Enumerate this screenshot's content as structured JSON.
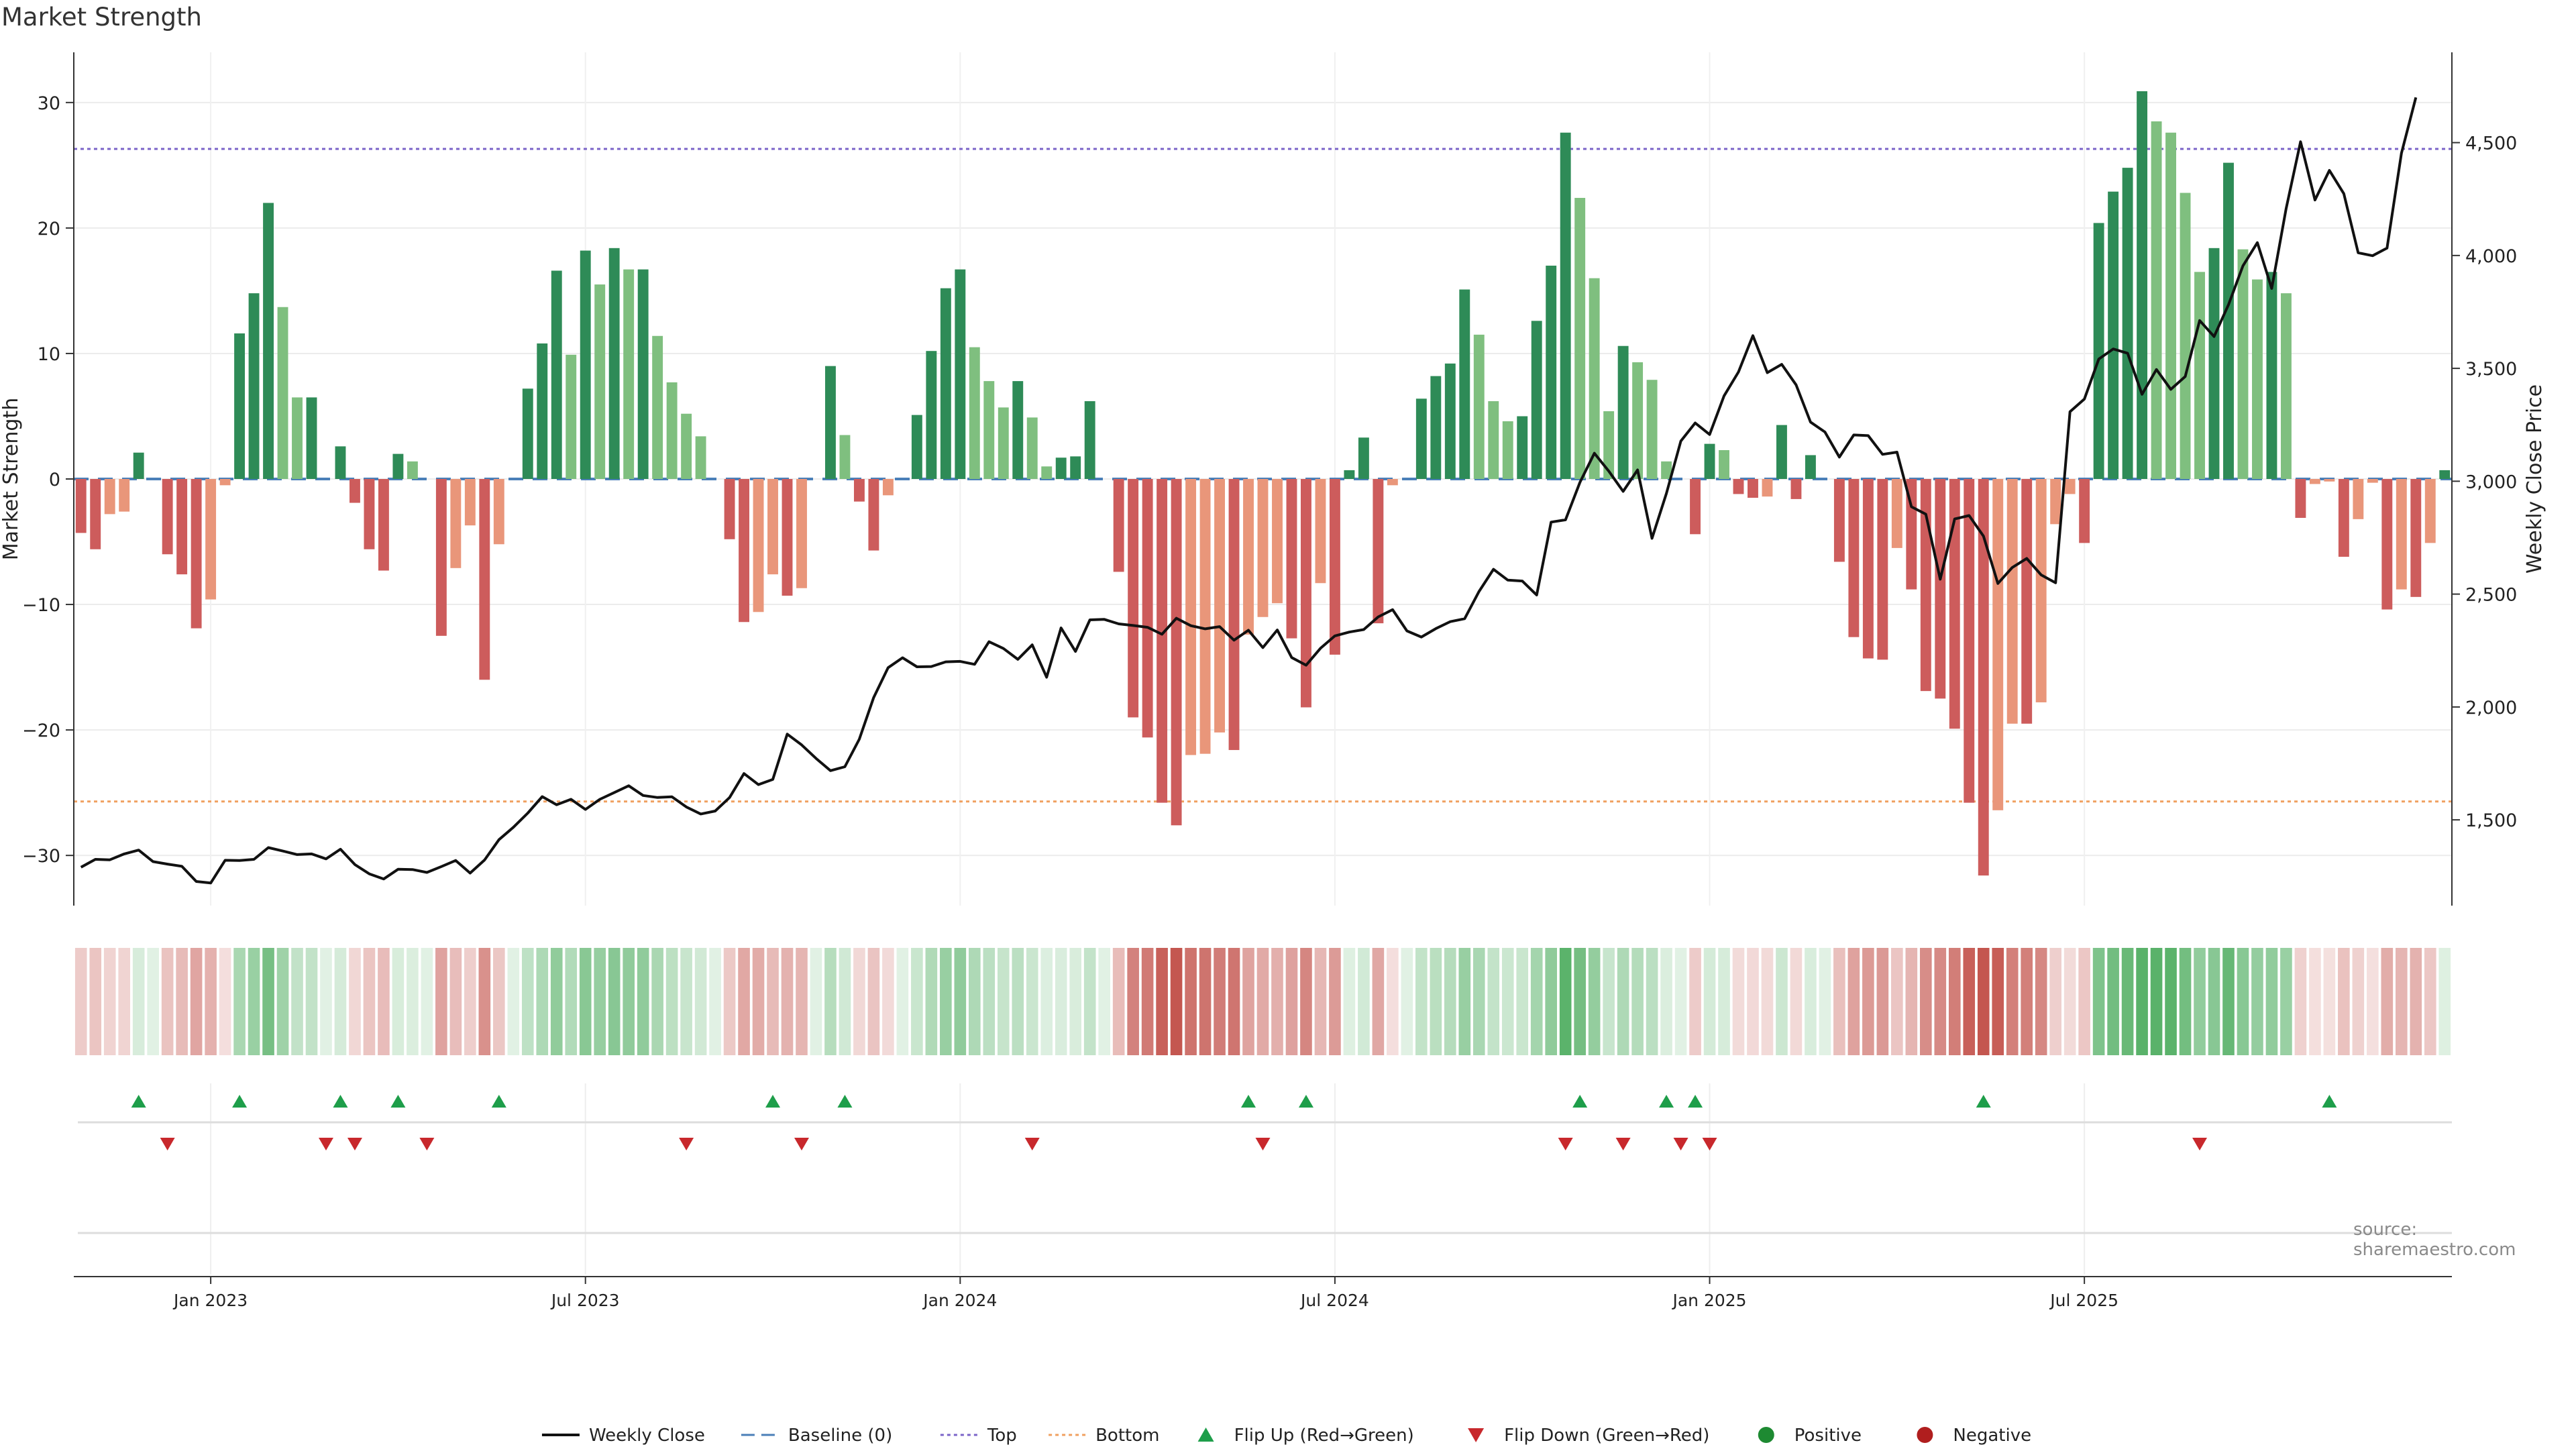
{
  "title": "Market Strength",
  "source": "source: sharemaestro.com",
  "chart_data": {
    "type": "bar",
    "ylabel": "Market Strength",
    "y2label": "Weekly Close Price",
    "ylim": [
      -34,
      34
    ],
    "y2lim": [
      1120,
      4900
    ],
    "yticks": [
      30,
      20,
      10,
      0,
      -10,
      -20,
      -30
    ],
    "y2ticks": [
      4500,
      4000,
      3500,
      3000,
      2500,
      2000,
      1500
    ],
    "ytick_labels": [
      "30",
      "20",
      "10",
      "0",
      "−10",
      "−20",
      "−30"
    ],
    "y2tick_labels": [
      "4,500",
      "4,000",
      "3,500",
      "3,000",
      "2,500",
      "2,000",
      "1,500"
    ],
    "xticks": [
      {
        "index": 9,
        "label": "Jan 2023"
      },
      {
        "index": 35,
        "label": "Jul 2023"
      },
      {
        "index": 61,
        "label": "Jan 2024"
      },
      {
        "index": 87,
        "label": "Jul 2024"
      },
      {
        "index": 113,
        "label": "Jan 2025"
      },
      {
        "index": 139,
        "label": "Jul 2025"
      }
    ],
    "top_level": 26.3,
    "bottom_level": -25.7,
    "strength": [
      -4.3,
      -5.6,
      -2.8,
      -2.6,
      2.1,
      0,
      -6,
      -7.6,
      -11.9,
      -9.6,
      -0.5,
      11.6,
      14.8,
      22,
      13.7,
      6.5,
      6.5,
      0,
      2.6,
      -1.9,
      -5.6,
      -7.3,
      2,
      1.4,
      0,
      -12.5,
      -7.1,
      -3.7,
      -16,
      -5.2,
      0,
      7.2,
      10.8,
      16.6,
      9.9,
      18.2,
      15.5,
      18.4,
      16.7,
      16.7,
      11.4,
      7.7,
      5.2,
      3.4,
      0,
      -4.8,
      -11.4,
      -10.6,
      -7.6,
      -9.3,
      -8.7,
      0,
      9,
      3.5,
      -1.8,
      -5.7,
      -1.3,
      0,
      5.1,
      10.2,
      15.2,
      16.7,
      10.5,
      7.8,
      5.7,
      7.8,
      4.9,
      1,
      1.7,
      1.8,
      6.2,
      0,
      -7.4,
      -19,
      -20.6,
      -25.8,
      -27.6,
      -22,
      -21.9,
      -20.2,
      -21.6,
      -12.4,
      -11,
      -9.9,
      -12.7,
      -18.2,
      -8.3,
      -14,
      0.7,
      3.3,
      -11.5,
      -0.5,
      0,
      6.4,
      8.2,
      9.2,
      15.1,
      11.5,
      6.2,
      4.6,
      5,
      12.6,
      17,
      27.6,
      22.4,
      16,
      5.4,
      10.6,
      9.3,
      7.9,
      1.4,
      0,
      -4.4,
      2.8,
      2.3,
      -1.2,
      -1.5,
      -1.4,
      4.3,
      -1.6,
      1.9,
      0,
      -6.6,
      -12.6,
      -14.3,
      -14.4,
      -5.5,
      -8.8,
      -16.9,
      -17.5,
      -19.9,
      -25.8,
      -31.6,
      -26.4,
      -19.5,
      -19.5,
      -17.8,
      -3.6,
      -1.2,
      -5.1,
      20.4,
      22.9,
      24.8,
      30.9,
      28.5,
      27.6,
      22.8,
      16.5,
      18.4,
      25.2,
      18.3,
      15.9,
      16.5,
      14.8,
      -3.1,
      -0.4,
      -0.2,
      -6.2,
      -3.2,
      -0.3,
      -10.4,
      -8.8,
      -9.4,
      -5.1,
      0.7
    ],
    "close": [
      1290,
      1325,
      1323,
      1349,
      1366,
      1315,
      1304,
      1294,
      1227,
      1220,
      1321,
      1320,
      1325,
      1377,
      1362,
      1346,
      1349,
      1327,
      1370,
      1302,
      1261,
      1238,
      1281,
      1280,
      1267,
      1293,
      1320,
      1264,
      1322,
      1412,
      1467,
      1530,
      1603,
      1567,
      1591,
      1546,
      1591,
      1621,
      1651,
      1608,
      1599,
      1602,
      1557,
      1526,
      1539,
      1599,
      1705,
      1656,
      1679,
      1880,
      1832,
      1772,
      1718,
      1735,
      1857,
      2042,
      2174,
      2218,
      2178,
      2179,
      2200,
      2202,
      2189,
      2289,
      2259,
      2211,
      2275,
      2132,
      2350,
      2246,
      2386,
      2388,
      2368,
      2361,
      2353,
      2322,
      2393,
      2360,
      2346,
      2356,
      2296,
      2340,
      2263,
      2341,
      2219,
      2185,
      2260,
      2315,
      2332,
      2343,
      2399,
      2431,
      2337,
      2310,
      2347,
      2378,
      2391,
      2512,
      2610,
      2562,
      2558,
      2496,
      2819,
      2829,
      2995,
      3124,
      3045,
      2955,
      3050,
      2747,
      2946,
      3178,
      3258,
      3207,
      3378,
      3484,
      3645,
      3481,
      3518,
      3427,
      3262,
      3218,
      3107,
      3205,
      3202,
      3119,
      3129,
      2887,
      2854,
      2566,
      2833,
      2848,
      2757,
      2547,
      2618,
      2658,
      2585,
      2550,
      3308,
      3364,
      3541,
      3586,
      3567,
      3385,
      3495,
      3407,
      3464,
      3712,
      3641,
      3782,
      3954,
      4057,
      3854,
      4208,
      4504,
      4246,
      4377,
      4274,
      4012,
      3999,
      4033,
      4453,
      4700
    ],
    "heat_top_color": "#5ab26a",
    "heat_bottom_color": "#c4564f",
    "flips_up": [
      4,
      11,
      18,
      22,
      29,
      48,
      53,
      81,
      85,
      104,
      110,
      112,
      132,
      156
    ],
    "flips_down": [
      6,
      17,
      19,
      24,
      42,
      50,
      66,
      82,
      103,
      107,
      111,
      113,
      147
    ],
    "series": [
      {
        "name": "Weekly Close",
        "color": "#111111",
        "style": "line"
      },
      {
        "name": "Baseline (0)",
        "color": "#4a7fb8",
        "style": "dashed"
      },
      {
        "name": "Top",
        "color": "#7b64c8",
        "style": "dotted"
      },
      {
        "name": "Bottom",
        "color": "#f0a060",
        "style": "dotted"
      },
      {
        "name": "Flip Up (Red→Green)",
        "color": "#1e9e4a",
        "style": "triangle-up"
      },
      {
        "name": "Flip Down (Green→Red)",
        "color": "#c8282c",
        "style": "triangle-down"
      },
      {
        "name": "Positive",
        "color": "#1e8a32",
        "style": "dot"
      },
      {
        "name": "Negative",
        "color": "#b01e1e",
        "style": "dot"
      }
    ],
    "colors": {
      "pos_strong": "#2e8b57",
      "pos_weak": "#7fbf7f",
      "neg_strong": "#cd5c5c",
      "neg_weak": "#e9967a"
    },
    "legend_position": "bottom-center",
    "grid": true
  }
}
